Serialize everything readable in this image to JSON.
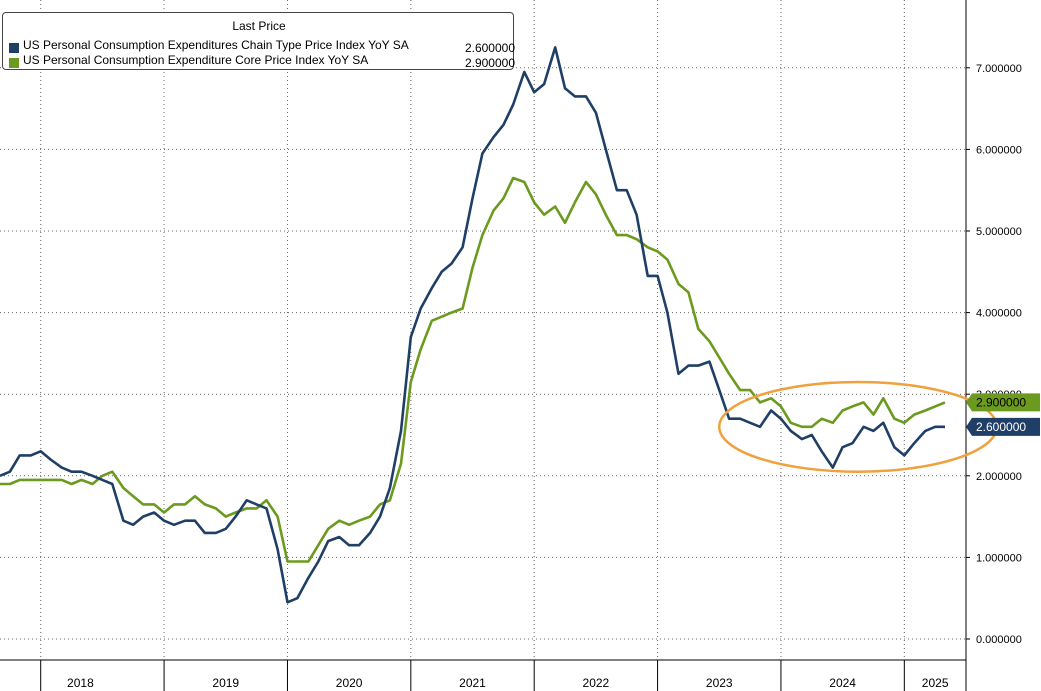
{
  "chart_data": {
    "type": "line",
    "title": "",
    "legend": {
      "title": "Last Price",
      "placement": "top-left"
    },
    "xlabel": "",
    "ylabel": "",
    "ylim": [
      0,
      8
    ],
    "yticks": [
      0,
      1,
      2,
      3,
      4,
      5,
      6,
      7
    ],
    "ytick_labels": [
      "0.000000",
      "1.000000",
      "2.000000",
      "3.000000",
      "4.000000",
      "5.000000",
      "6.000000",
      "7.000000"
    ],
    "x_start_year": 2017.67,
    "x_end_year": 2025.5,
    "year_labels": [
      "2018",
      "2019",
      "2020",
      "2021",
      "2022",
      "2023",
      "2024",
      "2025"
    ],
    "grid": true,
    "series": [
      {
        "name": "US Personal Consumption Expenditures Chain Type Price Index YoY SA",
        "last_value": "2.600000",
        "badge": "2.600000",
        "color": "#1f3f66",
        "values": [
          [
            2017.67,
            2.0
          ],
          [
            2017.75,
            2.05
          ],
          [
            2017.83,
            2.25
          ],
          [
            2017.92,
            2.25
          ],
          [
            2018.0,
            2.3
          ],
          [
            2018.08,
            2.2
          ],
          [
            2018.17,
            2.1
          ],
          [
            2018.25,
            2.05
          ],
          [
            2018.33,
            2.05
          ],
          [
            2018.42,
            2.0
          ],
          [
            2018.5,
            1.95
          ],
          [
            2018.58,
            1.9
          ],
          [
            2018.67,
            1.45
          ],
          [
            2018.75,
            1.4
          ],
          [
            2018.83,
            1.5
          ],
          [
            2018.92,
            1.55
          ],
          [
            2019.0,
            1.45
          ],
          [
            2019.08,
            1.4
          ],
          [
            2019.17,
            1.45
          ],
          [
            2019.25,
            1.45
          ],
          [
            2019.33,
            1.3
          ],
          [
            2019.42,
            1.3
          ],
          [
            2019.5,
            1.35
          ],
          [
            2019.58,
            1.5
          ],
          [
            2019.67,
            1.7
          ],
          [
            2019.75,
            1.65
          ],
          [
            2019.83,
            1.6
          ],
          [
            2019.92,
            1.1
          ],
          [
            2020.0,
            0.45
          ],
          [
            2020.08,
            0.5
          ],
          [
            2020.17,
            0.75
          ],
          [
            2020.25,
            0.95
          ],
          [
            2020.33,
            1.2
          ],
          [
            2020.42,
            1.25
          ],
          [
            2020.5,
            1.15
          ],
          [
            2020.58,
            1.15
          ],
          [
            2020.67,
            1.3
          ],
          [
            2020.75,
            1.5
          ],
          [
            2020.83,
            1.85
          ],
          [
            2020.92,
            2.55
          ],
          [
            2021.0,
            3.7
          ],
          [
            2021.08,
            4.05
          ],
          [
            2021.17,
            4.3
          ],
          [
            2021.25,
            4.5
          ],
          [
            2021.33,
            4.6
          ],
          [
            2021.42,
            4.8
          ],
          [
            2021.5,
            5.4
          ],
          [
            2021.58,
            5.95
          ],
          [
            2021.67,
            6.15
          ],
          [
            2021.75,
            6.3
          ],
          [
            2021.83,
            6.55
          ],
          [
            2021.92,
            6.95
          ],
          [
            2022.0,
            6.7
          ],
          [
            2022.08,
            6.8
          ],
          [
            2022.17,
            7.25
          ],
          [
            2022.25,
            6.75
          ],
          [
            2022.33,
            6.65
          ],
          [
            2022.42,
            6.65
          ],
          [
            2022.5,
            6.45
          ],
          [
            2022.58,
            6.0
          ],
          [
            2022.67,
            5.5
          ],
          [
            2022.75,
            5.5
          ],
          [
            2022.83,
            5.2
          ],
          [
            2022.92,
            4.45
          ],
          [
            2023.0,
            4.45
          ],
          [
            2023.08,
            4.0
          ],
          [
            2023.17,
            3.25
          ],
          [
            2023.25,
            3.35
          ],
          [
            2023.33,
            3.35
          ],
          [
            2023.42,
            3.4
          ],
          [
            2023.5,
            3.05
          ],
          [
            2023.58,
            2.7
          ],
          [
            2023.67,
            2.7
          ],
          [
            2023.75,
            2.65
          ],
          [
            2023.83,
            2.6
          ],
          [
            2023.92,
            2.8
          ],
          [
            2024.0,
            2.7
          ],
          [
            2024.08,
            2.55
          ],
          [
            2024.17,
            2.45
          ],
          [
            2024.25,
            2.5
          ],
          [
            2024.33,
            2.3
          ],
          [
            2024.42,
            2.1
          ],
          [
            2024.5,
            2.35
          ],
          [
            2024.58,
            2.4
          ],
          [
            2024.67,
            2.6
          ],
          [
            2024.75,
            2.55
          ],
          [
            2024.83,
            2.65
          ],
          [
            2024.92,
            2.35
          ],
          [
            2025.0,
            2.25
          ],
          [
            2025.08,
            2.4
          ],
          [
            2025.17,
            2.55
          ],
          [
            2025.25,
            2.6
          ],
          [
            2025.33,
            2.6
          ]
        ]
      },
      {
        "name": "US Personal Consumption Expenditure Core Price Index YoY SA",
        "last_value": "2.900000",
        "badge": "2.900000",
        "color": "#6b9a1e",
        "values": [
          [
            2017.67,
            1.9
          ],
          [
            2017.75,
            1.9
          ],
          [
            2017.83,
            1.95
          ],
          [
            2017.92,
            1.95
          ],
          [
            2018.0,
            1.95
          ],
          [
            2018.08,
            1.95
          ],
          [
            2018.17,
            1.95
          ],
          [
            2018.25,
            1.9
          ],
          [
            2018.33,
            1.95
          ],
          [
            2018.42,
            1.9
          ],
          [
            2018.5,
            2.0
          ],
          [
            2018.58,
            2.05
          ],
          [
            2018.67,
            1.85
          ],
          [
            2018.75,
            1.75
          ],
          [
            2018.83,
            1.65
          ],
          [
            2018.92,
            1.65
          ],
          [
            2019.0,
            1.55
          ],
          [
            2019.08,
            1.65
          ],
          [
            2019.17,
            1.65
          ],
          [
            2019.25,
            1.75
          ],
          [
            2019.33,
            1.65
          ],
          [
            2019.42,
            1.6
          ],
          [
            2019.5,
            1.5
          ],
          [
            2019.58,
            1.55
          ],
          [
            2019.67,
            1.6
          ],
          [
            2019.75,
            1.6
          ],
          [
            2019.83,
            1.7
          ],
          [
            2019.92,
            1.5
          ],
          [
            2020.0,
            0.95
          ],
          [
            2020.08,
            0.95
          ],
          [
            2020.17,
            0.95
          ],
          [
            2020.25,
            1.15
          ],
          [
            2020.33,
            1.35
          ],
          [
            2020.42,
            1.45
          ],
          [
            2020.5,
            1.4
          ],
          [
            2020.58,
            1.45
          ],
          [
            2020.67,
            1.5
          ],
          [
            2020.75,
            1.65
          ],
          [
            2020.83,
            1.7
          ],
          [
            2020.92,
            2.15
          ],
          [
            2021.0,
            3.15
          ],
          [
            2021.08,
            3.55
          ],
          [
            2021.17,
            3.9
          ],
          [
            2021.25,
            3.95
          ],
          [
            2021.33,
            4.0
          ],
          [
            2021.42,
            4.05
          ],
          [
            2021.5,
            4.55
          ],
          [
            2021.58,
            4.95
          ],
          [
            2021.67,
            5.25
          ],
          [
            2021.75,
            5.4
          ],
          [
            2021.83,
            5.65
          ],
          [
            2021.92,
            5.6
          ],
          [
            2022.0,
            5.35
          ],
          [
            2022.08,
            5.2
          ],
          [
            2022.17,
            5.3
          ],
          [
            2022.25,
            5.1
          ],
          [
            2022.33,
            5.35
          ],
          [
            2022.42,
            5.6
          ],
          [
            2022.5,
            5.45
          ],
          [
            2022.58,
            5.2
          ],
          [
            2022.67,
            4.95
          ],
          [
            2022.75,
            4.95
          ],
          [
            2022.83,
            4.9
          ],
          [
            2022.92,
            4.8
          ],
          [
            2023.0,
            4.75
          ],
          [
            2023.08,
            4.65
          ],
          [
            2023.17,
            4.35
          ],
          [
            2023.25,
            4.25
          ],
          [
            2023.33,
            3.8
          ],
          [
            2023.42,
            3.65
          ],
          [
            2023.5,
            3.45
          ],
          [
            2023.58,
            3.25
          ],
          [
            2023.67,
            3.05
          ],
          [
            2023.75,
            3.05
          ],
          [
            2023.83,
            2.9
          ],
          [
            2023.92,
            2.95
          ],
          [
            2024.0,
            2.85
          ],
          [
            2024.08,
            2.65
          ],
          [
            2024.17,
            2.6
          ],
          [
            2024.25,
            2.6
          ],
          [
            2024.33,
            2.7
          ],
          [
            2024.42,
            2.65
          ],
          [
            2024.5,
            2.8
          ],
          [
            2024.58,
            2.85
          ],
          [
            2024.67,
            2.9
          ],
          [
            2024.75,
            2.75
          ],
          [
            2024.83,
            2.95
          ],
          [
            2024.92,
            2.7
          ],
          [
            2025.0,
            2.65
          ],
          [
            2025.08,
            2.75
          ],
          [
            2025.17,
            2.8
          ],
          [
            2025.25,
            2.85
          ],
          [
            2025.33,
            2.9
          ]
        ]
      }
    ],
    "annotations": [
      {
        "type": "ellipse",
        "color": "#f0a03c",
        "x_range": [
          2023.5,
          2025.75
        ],
        "y_range": [
          2.05,
          3.15
        ]
      }
    ]
  }
}
